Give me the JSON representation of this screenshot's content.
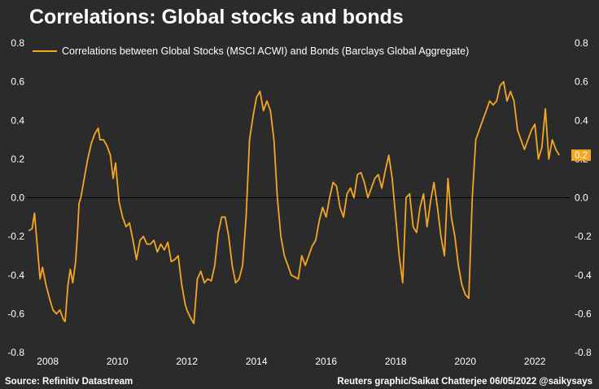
{
  "chart_data": {
    "type": "line",
    "title": "Correlations: Global stocks and bonds",
    "legend_placement": "top-left",
    "grid": false,
    "x_range": [
      2007.4,
      2023.0
    ],
    "ylim": [
      -0.8,
      0.8
    ],
    "y_ticks": [
      0.8,
      0.6,
      0.4,
      0.2,
      0.0,
      -0.2,
      -0.4,
      -0.6,
      -0.8
    ],
    "y_tick_labels": [
      "0.8",
      "0.6",
      "0.4",
      "0.2",
      "0.0",
      "-0.2",
      "-0.4",
      "-0.6",
      "-0.8"
    ],
    "x_ticks": [
      2008,
      2010,
      2012,
      2014,
      2016,
      2018,
      2020,
      2022
    ],
    "x_tick_labels": [
      "2008",
      "2010",
      "2012",
      "2014",
      "2016",
      "2018",
      "2020",
      "2022"
    ],
    "zero_line": true,
    "last_value_label": "0.2",
    "series": [
      {
        "name": "Correlations between Global Stocks (MSCI ACWI) and Bonds (Barclays Global Aggregate)",
        "color": "#f5a623",
        "x": [
          2007.45,
          2007.55,
          2007.62,
          2007.7,
          2007.78,
          2007.85,
          2007.95,
          2008.05,
          2008.15,
          2008.25,
          2008.35,
          2008.45,
          2008.5,
          2008.58,
          2008.65,
          2008.72,
          2008.8,
          2008.85,
          2008.9,
          2008.95,
          2009.05,
          2009.15,
          2009.25,
          2009.35,
          2009.45,
          2009.5,
          2009.6,
          2009.7,
          2009.8,
          2009.88,
          2009.95,
          2010.05,
          2010.15,
          2010.25,
          2010.35,
          2010.45,
          2010.55,
          2010.65,
          2010.75,
          2010.85,
          2010.95,
          2011.05,
          2011.15,
          2011.25,
          2011.35,
          2011.45,
          2011.55,
          2011.65,
          2011.75,
          2011.85,
          2011.95,
          2012.0,
          2012.1,
          2012.2,
          2012.3,
          2012.4,
          2012.5,
          2012.6,
          2012.7,
          2012.8,
          2012.9,
          2013.0,
          2013.1,
          2013.2,
          2013.3,
          2013.4,
          2013.5,
          2013.6,
          2013.7,
          2013.8,
          2013.9,
          2014.0,
          2014.1,
          2014.2,
          2014.3,
          2014.4,
          2014.5,
          2014.6,
          2014.7,
          2014.8,
          2014.9,
          2015.0,
          2015.1,
          2015.2,
          2015.3,
          2015.4,
          2015.5,
          2015.6,
          2015.7,
          2015.8,
          2015.9,
          2016.0,
          2016.1,
          2016.2,
          2016.3,
          2016.4,
          2016.5,
          2016.6,
          2016.7,
          2016.8,
          2016.9,
          2017.0,
          2017.1,
          2017.2,
          2017.3,
          2017.4,
          2017.5,
          2017.6,
          2017.7,
          2017.8,
          2017.9,
          2018.0,
          2018.1,
          2018.2,
          2018.3,
          2018.4,
          2018.5,
          2018.6,
          2018.7,
          2018.8,
          2018.9,
          2019.0,
          2019.1,
          2019.2,
          2019.3,
          2019.4,
          2019.5,
          2019.6,
          2019.7,
          2019.8,
          2019.9,
          2020.0,
          2020.1,
          2020.2,
          2020.3,
          2020.4,
          2020.5,
          2020.6,
          2020.7,
          2020.8,
          2020.9,
          2021.0,
          2021.1,
          2021.2,
          2021.3,
          2021.4,
          2021.5,
          2021.6,
          2021.7,
          2021.8,
          2021.9,
          2022.0,
          2022.1,
          2022.2,
          2022.3,
          2022.4,
          2022.5,
          2022.6,
          2022.7
        ],
        "y": [
          -0.17,
          -0.16,
          -0.08,
          -0.25,
          -0.42,
          -0.36,
          -0.45,
          -0.52,
          -0.58,
          -0.6,
          -0.58,
          -0.63,
          -0.64,
          -0.45,
          -0.37,
          -0.44,
          -0.33,
          -0.2,
          -0.03,
          0.0,
          0.1,
          0.2,
          0.28,
          0.33,
          0.36,
          0.3,
          0.3,
          0.27,
          0.22,
          0.1,
          0.18,
          -0.02,
          -0.1,
          -0.15,
          -0.13,
          -0.22,
          -0.32,
          -0.22,
          -0.2,
          -0.24,
          -0.24,
          -0.22,
          -0.28,
          -0.24,
          -0.27,
          -0.23,
          -0.33,
          -0.32,
          -0.3,
          -0.45,
          -0.55,
          -0.58,
          -0.62,
          -0.65,
          -0.42,
          -0.38,
          -0.44,
          -0.42,
          -0.43,
          -0.35,
          -0.18,
          -0.1,
          -0.1,
          -0.2,
          -0.35,
          -0.44,
          -0.42,
          -0.35,
          -0.1,
          0.3,
          0.42,
          0.52,
          0.55,
          0.45,
          0.5,
          0.45,
          0.3,
          0.0,
          -0.2,
          -0.3,
          -0.35,
          -0.4,
          -0.41,
          -0.42,
          -0.3,
          -0.35,
          -0.3,
          -0.25,
          -0.22,
          -0.12,
          -0.05,
          -0.1,
          0.0,
          0.08,
          0.06,
          -0.05,
          -0.1,
          0.02,
          0.05,
          0.0,
          0.12,
          0.13,
          0.08,
          0.0,
          0.05,
          0.1,
          0.12,
          0.05,
          0.14,
          0.22,
          0.1,
          -0.1,
          -0.3,
          -0.44,
          0.0,
          0.02,
          -0.15,
          -0.18,
          -0.05,
          0.02,
          -0.15,
          -0.02,
          0.08,
          -0.05,
          -0.2,
          -0.3,
          0.1,
          -0.1,
          -0.2,
          -0.35,
          -0.45,
          -0.5,
          -0.52,
          0.0,
          0.3,
          0.35,
          0.4,
          0.45,
          0.5,
          0.48,
          0.5,
          0.58,
          0.6,
          0.5,
          0.55,
          0.5,
          0.35,
          0.3,
          0.25,
          0.3,
          0.35,
          0.38,
          0.2,
          0.26,
          0.46,
          0.2,
          0.3,
          0.25,
          0.22
        ]
      }
    ]
  },
  "footer": {
    "source": "Source: Refinitiv Datastream",
    "credit": "Reuters graphic/Saikat Chatterjee 06/05/2022 @saikysays"
  }
}
